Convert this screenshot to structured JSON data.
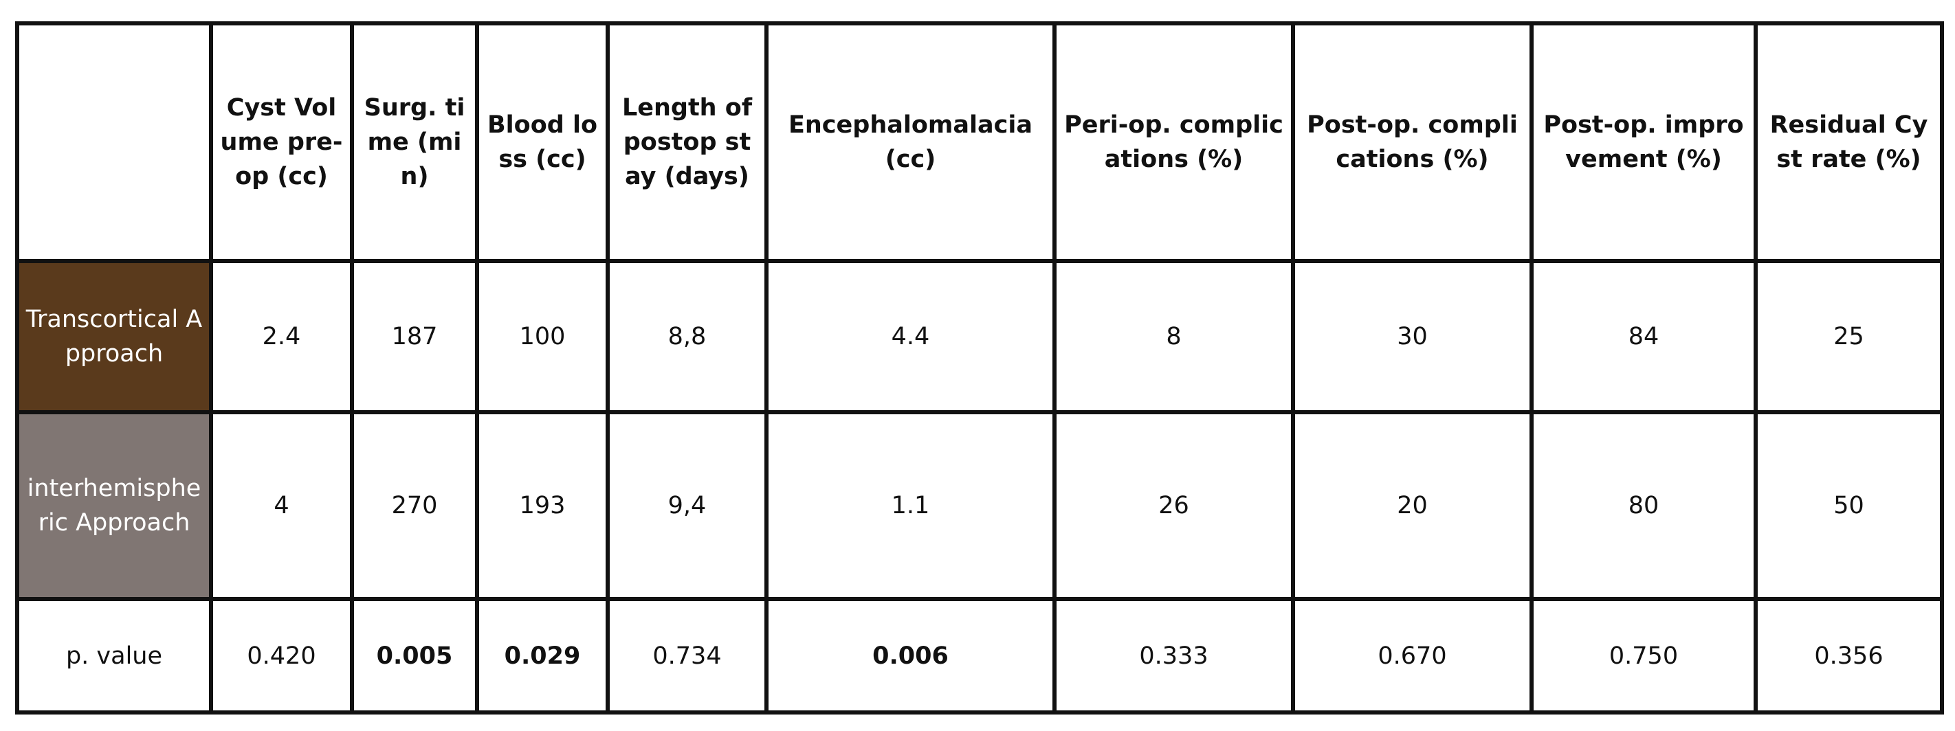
{
  "table": {
    "headers": [
      "",
      "Cyst Volume pre-op (cc)",
      "Surg. time (min)",
      "Blood loss (cc)",
      "Length of postop stay (days)",
      "Encephalomalacia (cc)",
      "Peri-op. complications (%)",
      "Post-op. complications (%)",
      "Post-op. improvement (%)",
      "Residual Cyst rate (%)"
    ],
    "rows": [
      {
        "label": "Transcortical Approach",
        "label_color": "#5a3a1c",
        "values": [
          "2.4",
          "187",
          "100",
          "8,8",
          "4.4",
          "8",
          "30",
          "84",
          "25"
        ]
      },
      {
        "label": "interhemispheric Approach",
        "label_color": "#807673",
        "values": [
          "4",
          "270",
          "193",
          "9,4",
          "1.1",
          "26",
          "20",
          "80",
          "50"
        ]
      }
    ],
    "p_value": {
      "label": "p. value",
      "values": [
        "0.420",
        "0.005",
        "0.029",
        "0.734",
        "0.006",
        "0.333",
        "0.670",
        "0.750",
        "0.356"
      ],
      "bold": [
        false,
        true,
        true,
        false,
        true,
        false,
        false,
        false,
        false
      ]
    }
  }
}
